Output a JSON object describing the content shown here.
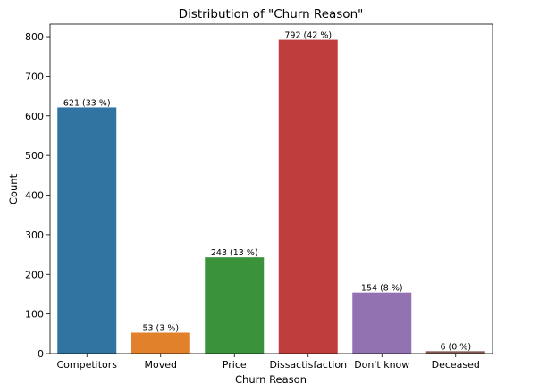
{
  "chart_data": {
    "type": "bar",
    "title": "Distribution of \"Churn Reason\"",
    "xlabel": "Churn Reason",
    "ylabel": "Count",
    "categories": [
      "Competitors",
      "Moved",
      "Price",
      "Dissactisfaction",
      "Don't know",
      "Deceased"
    ],
    "values": [
      621,
      53,
      243,
      792,
      154,
      6
    ],
    "data_labels": [
      "621 (33 %)",
      "53 (3 %)",
      "243 (13 %)",
      "792 (42 %)",
      "154 (8 %)",
      "6 (0 %)"
    ],
    "colors": [
      "#3274a1",
      "#e1812c",
      "#3a923a",
      "#c03d3e",
      "#9372b2",
      "#845b53"
    ],
    "yticks": [
      0,
      100,
      200,
      300,
      400,
      500,
      600,
      700,
      800
    ],
    "ylim": [
      0,
      831.6
    ],
    "grid": false,
    "legend": "none"
  }
}
